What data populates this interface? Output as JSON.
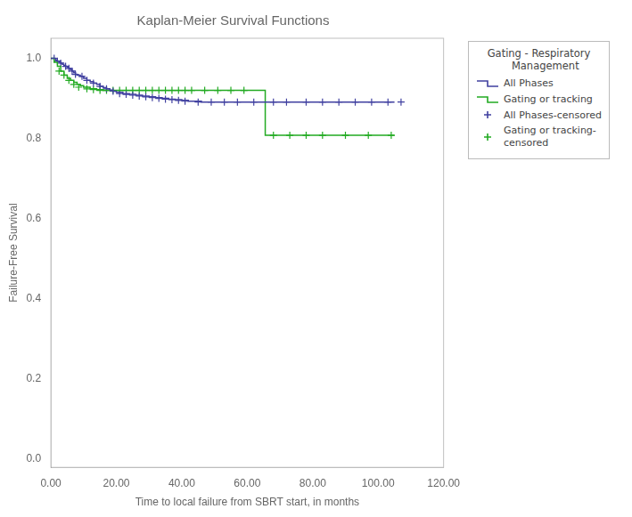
{
  "chart_data": {
    "type": "line",
    "title": "Kaplan-Meier Survival Functions",
    "xlabel": "Time to local failure from SBRT start, in months",
    "ylabel": "Failure-Free Survival",
    "legend_title": "Gating - Respiratory\n    Management",
    "legend": "right",
    "grid": false,
    "xlim": [
      0,
      120
    ],
    "ylim": [
      -0.02,
      1.05
    ],
    "xticks": [
      {
        "value": 0,
        "label": "0.00"
      },
      {
        "value": 20,
        "label": "20.00"
      },
      {
        "value": 40,
        "label": "40.00"
      },
      {
        "value": 60,
        "label": "60.00"
      },
      {
        "value": 80,
        "label": "80.00"
      },
      {
        "value": 100,
        "label": "100.00"
      },
      {
        "value": 120,
        "label": "120.00"
      }
    ],
    "yticks": [
      {
        "value": 0.0,
        "label": "0.0"
      },
      0.2,
      0.4,
      0.6,
      0.8,
      {
        "value": 1.0,
        "label": "1.0"
      }
    ],
    "series": [
      {
        "name": "All Phases",
        "type": "line",
        "line_style": "steps-post",
        "color": "#4040a0",
        "x": [
          0,
          0.5,
          1.0,
          1.5,
          2.0,
          2.5,
          3.0,
          3.5,
          4.0,
          4.5,
          5.0,
          5.5,
          6.0,
          6.5,
          7.0,
          7.5,
          8.0,
          9.0,
          10.0,
          11.0,
          12.0,
          13.0,
          14.0,
          15.0,
          16.0,
          17.0,
          18.0,
          19.0,
          20.0,
          22.0,
          24.0,
          26.0,
          28.0,
          30.0,
          32.0,
          34.0,
          36.0,
          38.0,
          40.0,
          42.0,
          44.0,
          46.0,
          48.0,
          50.0,
          52.0,
          54.0,
          56.0,
          58.0,
          60.0,
          65.0,
          70.0,
          75.0,
          80.0,
          85.0,
          90.0,
          95.0,
          100.0,
          105.0
        ],
        "values": [
          1.0,
          1.0,
          1.0,
          0.995,
          0.993,
          0.99,
          0.988,
          0.985,
          0.982,
          0.98,
          0.978,
          0.975,
          0.972,
          0.968,
          0.964,
          0.96,
          0.958,
          0.955,
          0.95,
          0.945,
          0.942,
          0.938,
          0.935,
          0.93,
          0.927,
          0.924,
          0.921,
          0.918,
          0.915,
          0.912,
          0.91,
          0.908,
          0.906,
          0.904,
          0.902,
          0.9,
          0.898,
          0.897,
          0.895,
          0.893,
          0.893,
          0.891,
          0.891,
          0.891,
          0.891,
          0.891,
          0.891,
          0.891,
          0.891,
          0.891,
          0.891,
          0.891,
          0.891,
          0.891,
          0.891,
          0.891,
          0.891,
          0.891
        ]
      },
      {
        "name": "Gating or tracking",
        "type": "line",
        "line_style": "steps-post",
        "color": "#22aa22",
        "x": [
          0,
          1.0,
          2.0,
          3.0,
          4.0,
          5.0,
          6.0,
          7.0,
          8.0,
          9.0,
          10.0,
          12.0,
          14.0,
          16.0,
          18.0,
          20.0,
          22.0,
          24.0,
          26.0,
          28.0,
          30.0,
          32.0,
          34.0,
          36.0,
          38.0,
          40.0,
          42.0,
          44.0,
          46.0,
          48.0,
          50.0,
          52.0,
          54.0,
          56.0,
          58.0,
          60.0,
          65.0,
          65.5,
          70.0,
          75.0,
          80.0,
          85.0,
          90.0,
          95.0,
          100.0,
          105.0
        ],
        "values": [
          1.0,
          0.99,
          0.98,
          0.968,
          0.958,
          0.95,
          0.945,
          0.94,
          0.935,
          0.932,
          0.928,
          0.924,
          0.922,
          0.92,
          0.92,
          0.92,
          0.92,
          0.92,
          0.92,
          0.92,
          0.92,
          0.92,
          0.92,
          0.92,
          0.92,
          0.92,
          0.92,
          0.92,
          0.92,
          0.92,
          0.92,
          0.92,
          0.92,
          0.92,
          0.92,
          0.92,
          0.92,
          0.808,
          0.808,
          0.808,
          0.808,
          0.808,
          0.808,
          0.808,
          0.808,
          0.808
        ]
      },
      {
        "name": "All Phases-censored",
        "type": "scatter",
        "marker": "+",
        "color": "#4040a0",
        "x": [
          1.0,
          2.0,
          3.0,
          4.5,
          5.5,
          6.5,
          7.5,
          9.5,
          11.0,
          13.0,
          15.0,
          17.0,
          19.0,
          21.0,
          23.0,
          25.0,
          27.0,
          29.0,
          31.0,
          33.0,
          35.0,
          37.0,
          39.0,
          41.0,
          45.0,
          49.0,
          53.0,
          57.0,
          62.0,
          68.0,
          72.0,
          78.0,
          83.0,
          88.0,
          93.0,
          98.0,
          103.0,
          107.0
        ],
        "values": [
          1.0,
          0.993,
          0.988,
          0.98,
          0.975,
          0.968,
          0.96,
          0.955,
          0.945,
          0.938,
          0.93,
          0.924,
          0.918,
          0.912,
          0.91,
          0.908,
          0.906,
          0.904,
          0.902,
          0.9,
          0.898,
          0.897,
          0.895,
          0.893,
          0.891,
          0.891,
          0.891,
          0.891,
          0.891,
          0.891,
          0.891,
          0.891,
          0.891,
          0.891,
          0.891,
          0.891,
          0.891,
          0.891
        ]
      },
      {
        "name": "Gating or tracking-\ncensored",
        "type": "scatter",
        "marker": "+",
        "color": "#22aa22",
        "x": [
          2.5,
          4.0,
          5.5,
          7.0,
          8.5,
          11.0,
          13.0,
          15.0,
          17.0,
          19.0,
          21.0,
          23.0,
          25.0,
          27.0,
          29.0,
          31.0,
          33.0,
          35.0,
          37.0,
          39.0,
          41.0,
          43.0,
          47.0,
          51.0,
          55.0,
          59.0,
          68.0,
          73.0,
          78.0,
          83.0,
          90.0,
          97.0,
          104.0
        ],
        "values": [
          0.968,
          0.958,
          0.945,
          0.935,
          0.928,
          0.924,
          0.922,
          0.92,
          0.92,
          0.92,
          0.92,
          0.92,
          0.92,
          0.92,
          0.92,
          0.92,
          0.92,
          0.92,
          0.92,
          0.92,
          0.92,
          0.92,
          0.92,
          0.92,
          0.92,
          0.92,
          0.808,
          0.808,
          0.808,
          0.808,
          0.808,
          0.808,
          0.808
        ]
      }
    ]
  }
}
